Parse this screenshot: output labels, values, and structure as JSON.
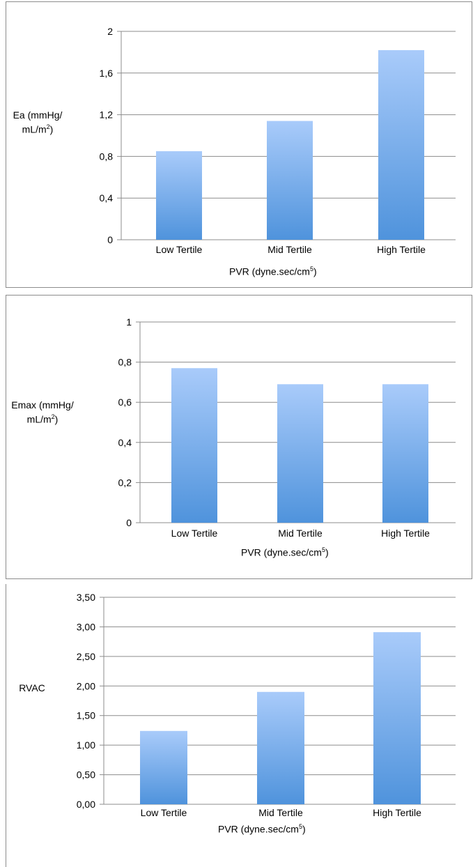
{
  "chart_data": [
    {
      "type": "bar",
      "categories": [
        "Low Tertile",
        "Mid Tertile",
        "High Tertile"
      ],
      "values": [
        0.85,
        1.14,
        1.82
      ],
      "ylabel_main": "Ea (mmHg/",
      "ylabel_unit": "mL/m",
      "ylabel_sup": "2",
      "ylabel_end": ")",
      "xlabel_main": "PVR (dyne.sec/cm",
      "xlabel_sup": "5",
      "xlabel_end": ")",
      "ylim": [
        0,
        2
      ],
      "ticks": [
        "0",
        "0,4",
        "0,8",
        "1,2",
        "1,6",
        "2"
      ],
      "grid": true
    },
    {
      "type": "bar",
      "categories": [
        "Low Tertile",
        "Mid Tertile",
        "High Tertile"
      ],
      "values": [
        0.77,
        0.69,
        0.69
      ],
      "ylabel_main": "Emax (mmHg/",
      "ylabel_unit": "mL/m",
      "ylabel_sup": "2",
      "ylabel_end": ")",
      "xlabel_main": "PVR (dyne.sec/cm",
      "xlabel_sup": "5",
      "xlabel_end": ")",
      "ylim": [
        0,
        1
      ],
      "ticks": [
        "0",
        "0,2",
        "0,4",
        "0,6",
        "0,8",
        "1"
      ],
      "grid": true
    },
    {
      "type": "bar",
      "categories": [
        "Low Tertile",
        "Mid Tertile",
        "High Tertile"
      ],
      "values": [
        1.24,
        1.9,
        2.91
      ],
      "ylabel_main": "RVAC",
      "ylabel_unit": "",
      "ylabel_sup": "",
      "ylabel_end": "",
      "xlabel_main": "PVR (dyne.sec/cm",
      "xlabel_sup": "5",
      "xlabel_end": ")",
      "ylim": [
        0,
        3.5
      ],
      "ticks": [
        "0,00",
        "0,50",
        "1,00",
        "1,50",
        "2,00",
        "2,50",
        "3,00",
        "3,50"
      ],
      "grid": true
    }
  ],
  "colors": {
    "bar_top": "#a9cbfa",
    "bar_bottom": "#4f93dc",
    "grid": "#8c8c8c"
  }
}
